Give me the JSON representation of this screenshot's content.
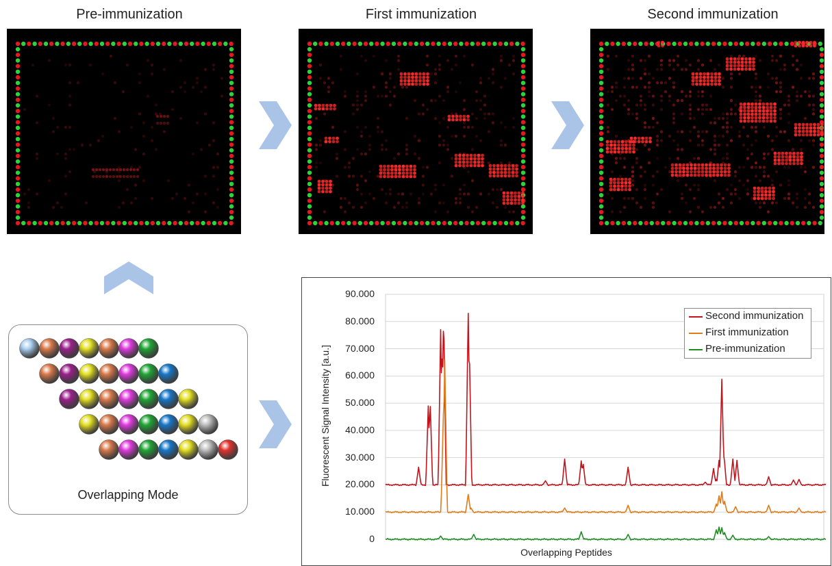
{
  "arrays": {
    "titles": [
      "Pre-immunization",
      "First immunization",
      "Second immunization"
    ],
    "spot_colors": {
      "border_red": "#e8161e",
      "border_green": "#2ed33a",
      "background": "#000000",
      "signal": "#ff2a2a"
    }
  },
  "overlapping_mode": {
    "caption": "Overlapping Mode",
    "bead_colors": {
      "lightblue": "#a9cff2",
      "copper": "#d97a4a",
      "purple": "#9c1f8c",
      "yellow": "#e3df21",
      "magenta": "#e03adf",
      "green": "#1fa634",
      "blue": "#1677c9",
      "gray": "#bdbdbd",
      "red": "#e2322c"
    },
    "rows": [
      [
        "lightblue",
        "copper",
        "purple",
        "yellow",
        "copper",
        "magenta",
        "green"
      ],
      [
        "copper",
        "purple",
        "yellow",
        "copper",
        "magenta",
        "green",
        "blue"
      ],
      [
        "purple",
        "yellow",
        "copper",
        "magenta",
        "green",
        "blue",
        "yellow"
      ],
      [
        "yellow",
        "copper",
        "magenta",
        "green",
        "blue",
        "yellow",
        "gray"
      ],
      [
        "copper",
        "magenta",
        "green",
        "blue",
        "yellow",
        "gray",
        "red"
      ]
    ]
  },
  "arrow_color": "#aac4e8",
  "chart_data": {
    "type": "line",
    "xlabel": "Overlapping  Peptides",
    "ylabel": "Fluorescent  Signal  Intensity  [a.u.]",
    "ylim": [
      0,
      90000
    ],
    "yticks": [
      0,
      10000,
      20000,
      30000,
      40000,
      50000,
      60000,
      70000,
      80000,
      90000
    ],
    "ytick_labels": [
      "0",
      "10.000",
      "20.000",
      "30.000",
      "40.000",
      "50.000",
      "60.000",
      "70.000",
      "80.000",
      "90.000"
    ],
    "x_count": 160,
    "legend_position": "top-right",
    "series": [
      {
        "name": "Second immunization",
        "color": "#c0141c",
        "baseline": 20000,
        "peaks": [
          [
            12,
            26500
          ],
          [
            15.5,
            49000
          ],
          [
            16.2,
            50500
          ],
          [
            20,
            77000
          ],
          [
            20.6,
            72000
          ],
          [
            21.1,
            83500
          ],
          [
            30,
            83000
          ],
          [
            30.4,
            70000
          ],
          [
            58,
            21500
          ],
          [
            65,
            29500
          ],
          [
            71,
            28800
          ],
          [
            71.7,
            28000
          ],
          [
            88,
            26500
          ],
          [
            116,
            21000
          ],
          [
            120,
            22000
          ],
          [
            119,
            26000
          ],
          [
            121,
            29000
          ],
          [
            122,
            58800
          ],
          [
            122.8,
            31000
          ],
          [
            126,
            29500
          ],
          [
            127.5,
            29000
          ],
          [
            139,
            23000
          ],
          [
            148,
            21800
          ],
          [
            150,
            22000
          ]
        ]
      },
      {
        "name": "First immunization",
        "color": "#e07a1a",
        "baseline": 10000,
        "peaks": [
          [
            21,
            46000
          ],
          [
            21.5,
            66000
          ],
          [
            30,
            16500
          ],
          [
            31,
            11500
          ],
          [
            65,
            11500
          ],
          [
            88,
            12500
          ],
          [
            120,
            13000
          ],
          [
            121,
            16000
          ],
          [
            122,
            17500
          ],
          [
            123,
            14000
          ],
          [
            127,
            12000
          ],
          [
            139,
            12500
          ],
          [
            150,
            11500
          ]
        ]
      },
      {
        "name": "Pre-immunization",
        "color": "#1e8c22",
        "baseline": 0,
        "peaks": [
          [
            20,
            1200
          ],
          [
            32,
            1800
          ],
          [
            71,
            2800
          ],
          [
            88,
            1800
          ],
          [
            120,
            3500
          ],
          [
            121,
            4500
          ],
          [
            122,
            4300
          ],
          [
            123,
            2500
          ],
          [
            126,
            1500
          ],
          [
            139,
            1000
          ]
        ]
      }
    ]
  }
}
